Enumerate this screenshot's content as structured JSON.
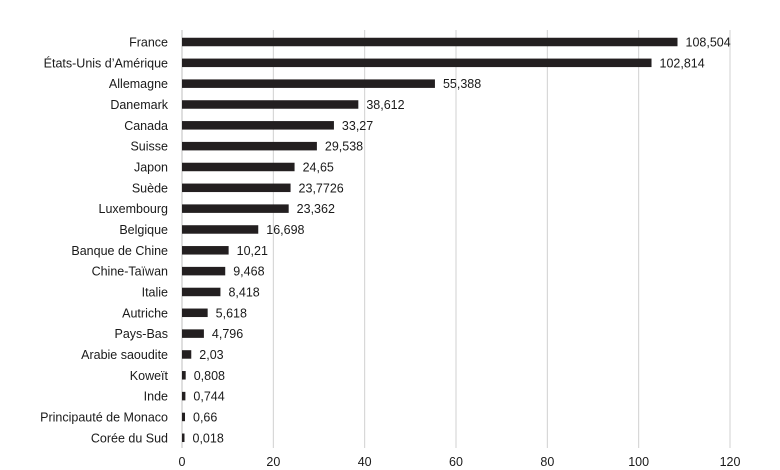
{
  "chart_data": {
    "type": "bar",
    "orientation": "horizontal",
    "categories": [
      "France",
      "États-Unis d’Amérique",
      "Allemagne",
      "Danemark",
      "Canada",
      "Suisse",
      "Japon",
      "Suède",
      "Luxembourg",
      "Belgique",
      "Banque de Chine",
      "Chine-Taïwan",
      "Italie",
      "Autriche",
      "Pays-Bas",
      "Arabie saoudite",
      "Koweït",
      "Inde",
      "Principauté de Monaco",
      "Corée du Sud"
    ],
    "values": [
      108.504,
      102.814,
      55.388,
      38.612,
      33.27,
      29.538,
      24.65,
      23.7726,
      23.362,
      16.698,
      10.21,
      9.468,
      8.418,
      5.618,
      4.796,
      2.03,
      0.808,
      0.744,
      0.66,
      0.018
    ],
    "value_labels": [
      "108,504",
      "102,814",
      "55,388",
      "38,612",
      "33,27",
      "29,538",
      "24,65",
      "23,7726",
      "23,362",
      "16,698",
      "10,21",
      "9,468",
      "8,418",
      "5,618",
      "4,796",
      "2,03",
      "0,808",
      "0,744",
      "0,66",
      "0,018"
    ],
    "xticks": [
      "0",
      "20",
      "40",
      "60",
      "80",
      "100",
      "120"
    ],
    "xlim": [
      0,
      120
    ],
    "bar_color": "#231f20",
    "grid": true,
    "legend": "none"
  }
}
